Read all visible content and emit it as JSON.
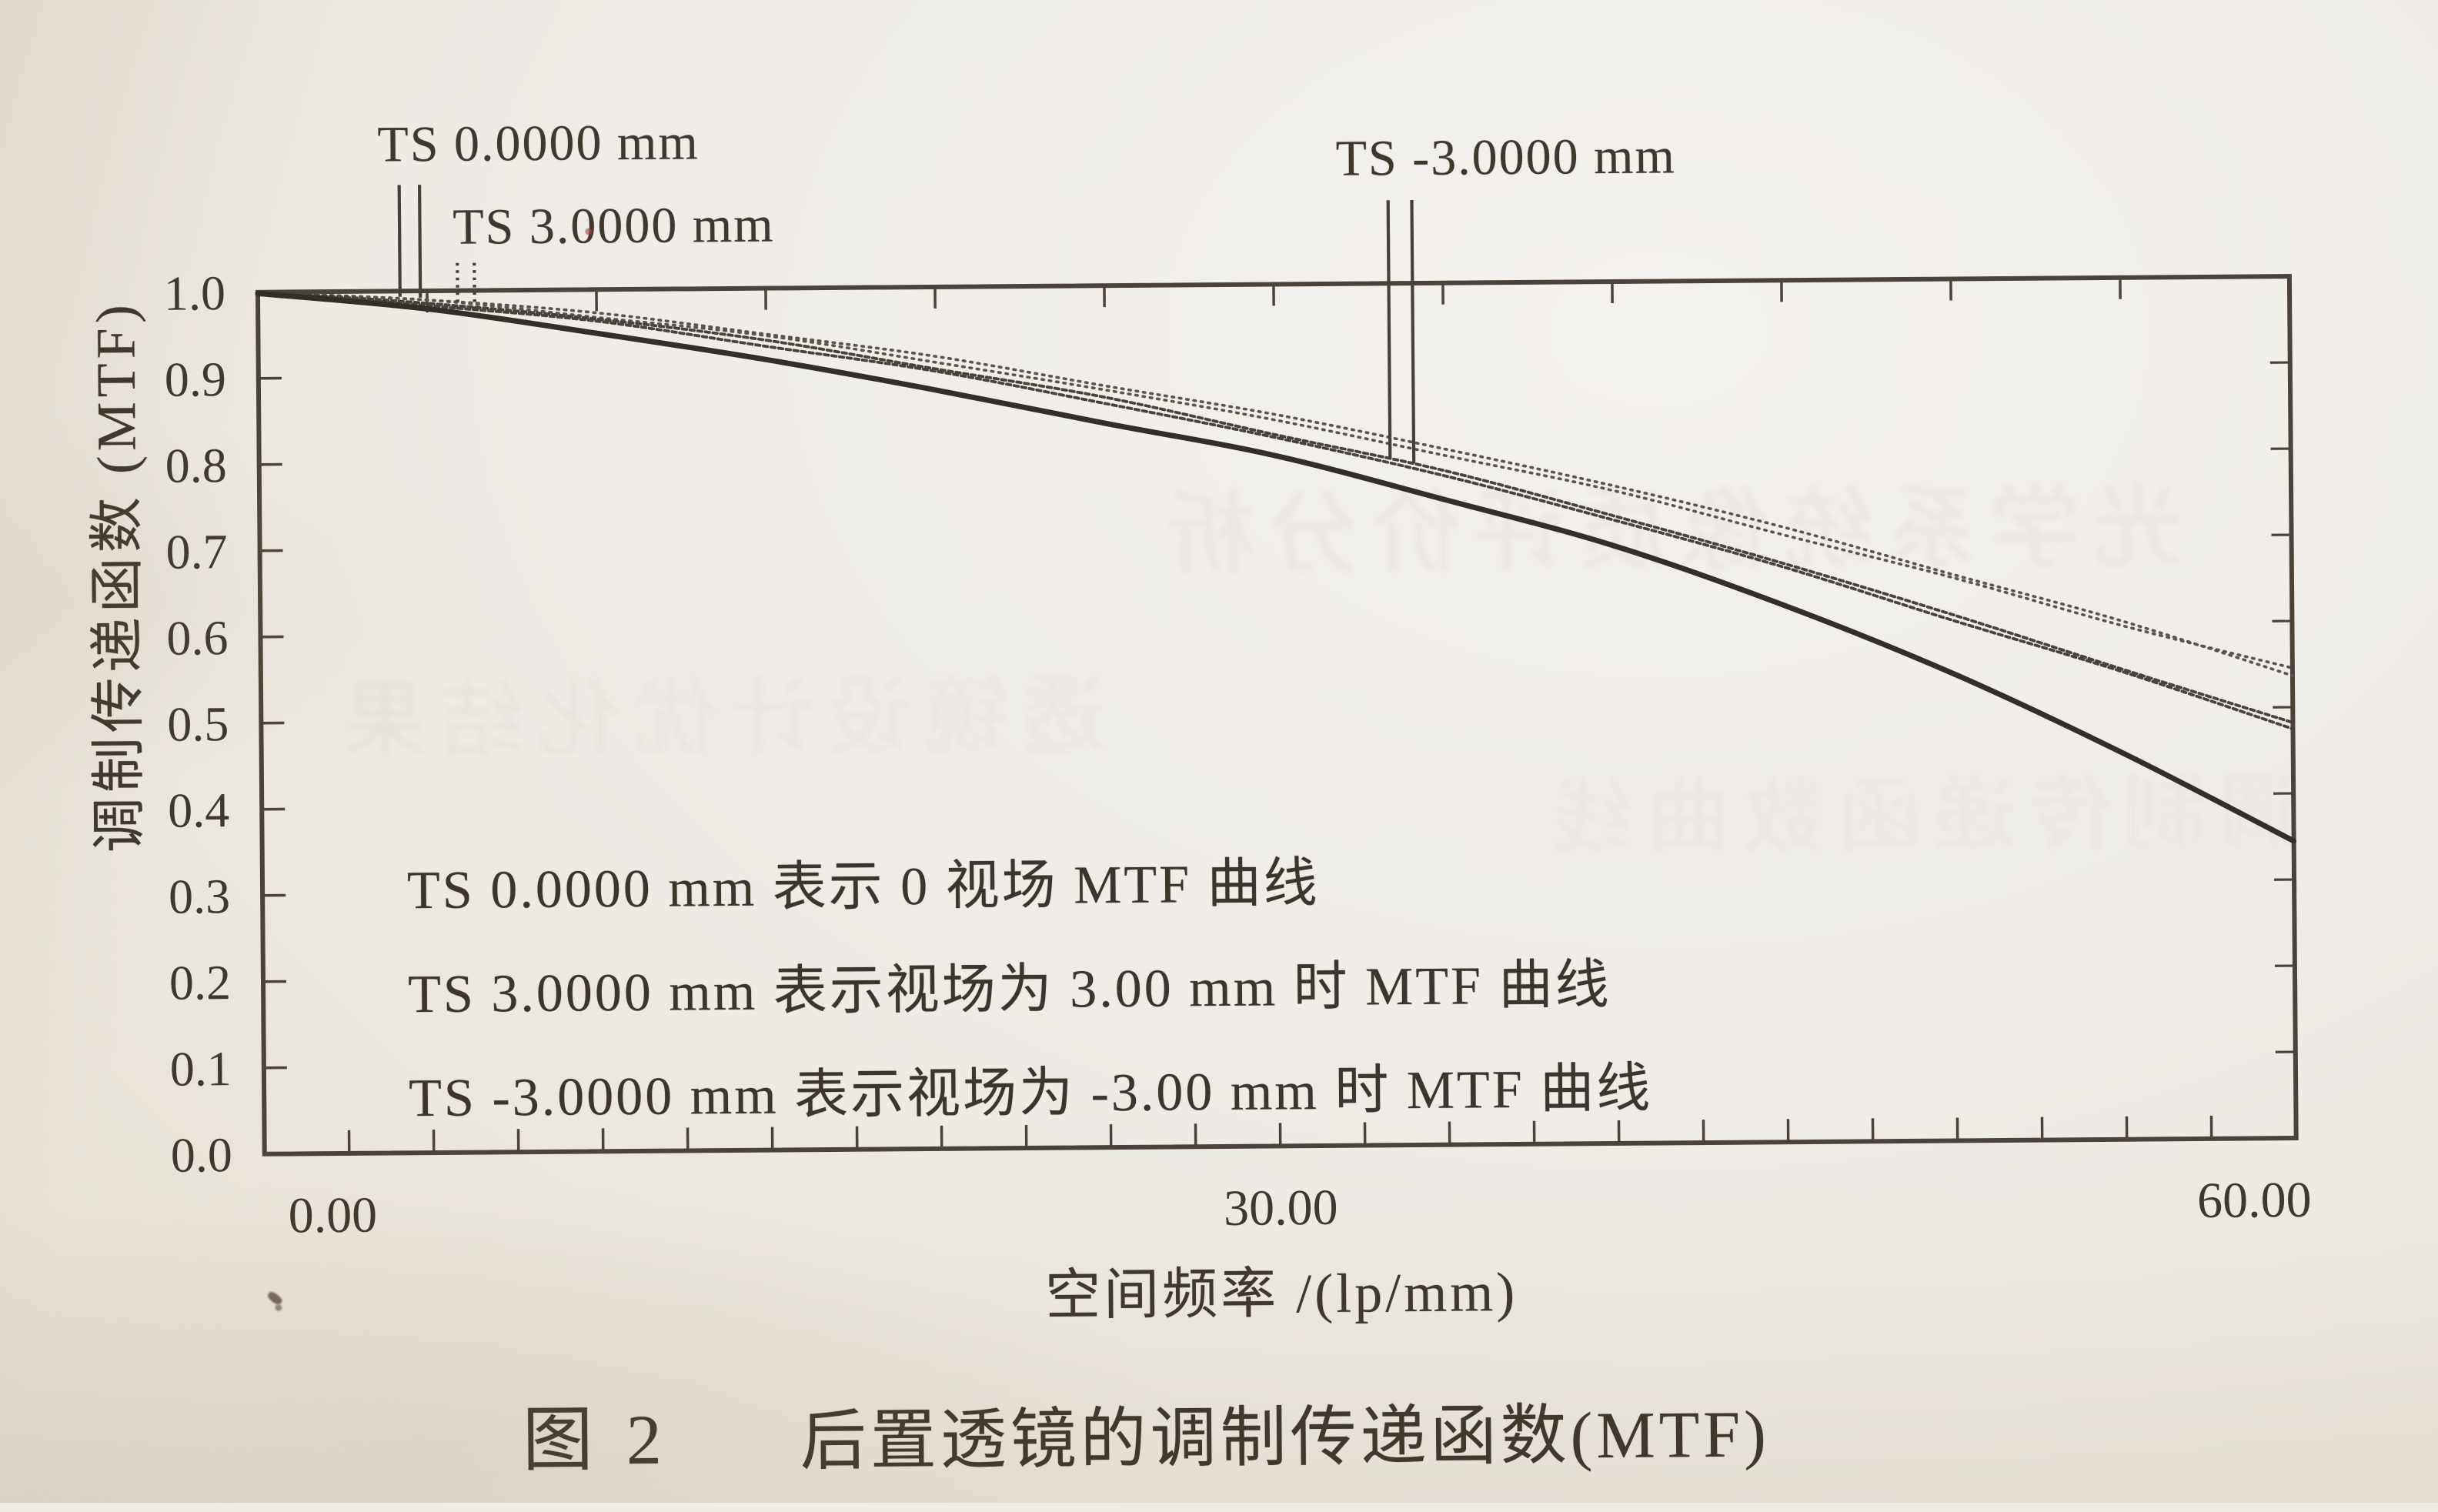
{
  "figure": {
    "caption_number": "图 2",
    "caption_text": "后置透镜的调制传递函数(MTF)"
  },
  "curve_labels": {
    "ts0": "TS 0.0000 mm",
    "ts3": "TS 3.0000 mm",
    "tsm3": "TS -3.0000 mm"
  },
  "legend": {
    "lines": [
      "TS 0.0000 mm 表示 0 视场 MTF 曲线",
      "TS 3.0000 mm 表示视场为 3.00 mm 时 MTF 曲线",
      "TS -3.0000 mm 表示视场为 -3.00 mm 时 MTF 曲线"
    ]
  },
  "axes": {
    "x": {
      "title": "空间频率 /(lp/mm)",
      "tick_labels": [
        "0.00",
        "30.00",
        "60.00"
      ],
      "tick_values": [
        0,
        30,
        60
      ],
      "minor_tick_step": 2.5,
      "top_tick_step": 5,
      "min": 0,
      "max": 60
    },
    "y": {
      "title": "调制传递函数 (MTF)",
      "tick_labels": [
        "1.0",
        "0.9",
        "0.8",
        "0.7",
        "0.6",
        "0.5",
        "0.4",
        "0.3",
        "0.2",
        "0.1",
        "0.0"
      ],
      "tick_step": 0.1,
      "min": 0,
      "max": 1.0
    }
  },
  "chart_data": {
    "type": "line",
    "title": "后置透镜的调制传递函数(MTF)",
    "xlabel": "空间频率 /(lp/mm)",
    "ylabel": "调制传递函数 (MTF)",
    "xlim": [
      0,
      60
    ],
    "ylim": [
      0,
      1.0
    ],
    "grid": false,
    "legend_position": "labels-above-plot-with-leader-ticks",
    "x": [
      0,
      5,
      10,
      15,
      20,
      25,
      30,
      35,
      40,
      45,
      50,
      55,
      60
    ],
    "series": [
      {
        "label": "TS 0.0000 mm",
        "surface": "tangential",
        "style": "dotted",
        "values": [
          1.0,
          0.99,
          0.972,
          0.948,
          0.918,
          0.885,
          0.848,
          0.808,
          0.763,
          0.713,
          0.658,
          0.6,
          0.538
        ]
      },
      {
        "label": "TS 0.0000 mm",
        "surface": "sagittal",
        "style": "dotted",
        "values": [
          1.0,
          0.988,
          0.969,
          0.944,
          0.913,
          0.879,
          0.842,
          0.801,
          0.756,
          0.706,
          0.652,
          0.597,
          0.545
        ]
      },
      {
        "label": "TS -3.0000 mm",
        "surface": "tangential",
        "style": "dashed",
        "values": [
          1.0,
          0.986,
          0.966,
          0.939,
          0.906,
          0.869,
          0.827,
          0.781,
          0.729,
          0.671,
          0.61,
          0.546,
          0.481
        ]
      },
      {
        "label": "TS -3.0000 mm",
        "surface": "sagittal",
        "style": "dashed",
        "values": [
          1.0,
          0.984,
          0.962,
          0.934,
          0.901,
          0.864,
          0.822,
          0.776,
          0.724,
          0.666,
          0.605,
          0.541,
          0.476
        ]
      },
      {
        "label": "TS 3.0000 mm",
        "surface": "tangential+sagittal",
        "style": "solid",
        "values": [
          1.0,
          0.978,
          0.95,
          0.917,
          0.88,
          0.841,
          0.8,
          0.75,
          0.692,
          0.624,
          0.541,
          0.448,
          0.345
        ]
      }
    ]
  },
  "annotations": {
    "leaders": [
      {
        "label": "TS 0.0000 mm",
        "points_to_series": 0,
        "x_units": [
          4.2,
          4.8
        ],
        "line_style": "solid"
      },
      {
        "label": "TS 3.0000 mm",
        "points_to_series": 4,
        "x_units": [
          5.9,
          6.4
        ],
        "line_style": "dotted"
      },
      {
        "label": "TS -3.0000 mm",
        "points_to_series": 2,
        "x_units": [
          33.4,
          34.1
        ],
        "line_style": "solid"
      }
    ]
  },
  "colors": {
    "paper": "#efece6",
    "ink": "#3e382f",
    "axis": "#4b4339",
    "curve_solid": "#332e29",
    "curve_dashed": "#47423b",
    "curve_dotted": "#5a544c",
    "leader": "#45403a",
    "fleck_red": "#a8463c"
  },
  "artifacts": {
    "ghost_bleed_texts": [
      "光学系统像质评价分析",
      "透镜设计优化结果",
      "调制传递函数曲线"
    ]
  }
}
